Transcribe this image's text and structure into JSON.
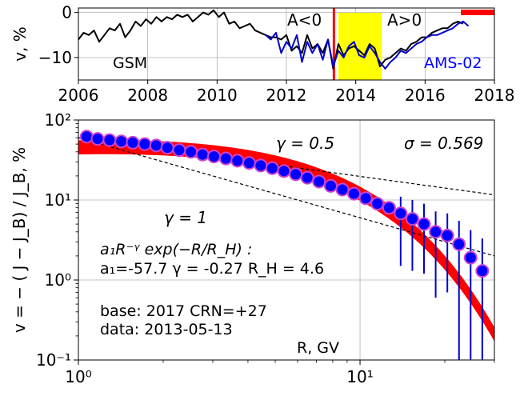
{
  "chart_data": [
    {
      "type": "line",
      "ylabel": "v, %",
      "xlim": [
        2006,
        2018
      ],
      "ylim": [
        -15,
        1
      ],
      "x_ticks": [
        "2006",
        "2008",
        "2010",
        "2012",
        "2014",
        "2016",
        "2018"
      ],
      "y_ticks": [
        "0",
        "−10"
      ],
      "grid": true,
      "annotations": [
        "A<0",
        "A>0",
        "GSM",
        "AMS-02"
      ],
      "red_line_x": 2013.37,
      "yellow_band": [
        2013.5,
        2014.75
      ],
      "series": [
        {
          "name": "GSM",
          "color": "#000000",
          "x": [
            2006.0,
            2006.15,
            2006.3,
            2006.45,
            2006.6,
            2006.75,
            2006.9,
            2007.05,
            2007.2,
            2007.35,
            2007.5,
            2007.65,
            2007.8,
            2007.95,
            2008.1,
            2008.25,
            2008.4,
            2008.55,
            2008.7,
            2008.85,
            2009.0,
            2009.15,
            2009.3,
            2009.45,
            2009.6,
            2009.75,
            2009.9,
            2010.05,
            2010.2,
            2010.35,
            2010.5,
            2010.65,
            2010.8,
            2010.95,
            2011.1,
            2011.25,
            2011.4,
            2011.55,
            2011.7,
            2011.85,
            2012.0,
            2012.15,
            2012.3,
            2012.45,
            2012.6,
            2012.75,
            2012.9,
            2013.05,
            2013.2,
            2013.35,
            2013.5,
            2013.65,
            2013.8,
            2013.95,
            2014.1,
            2014.25,
            2014.4,
            2014.55,
            2014.7,
            2014.85,
            2015.0,
            2015.15,
            2015.3,
            2015.45,
            2015.6,
            2015.75,
            2015.9,
            2016.05,
            2016.2,
            2016.35,
            2016.5,
            2016.65,
            2016.8,
            2016.95,
            2017.1
          ],
          "y": [
            -6.0,
            -4.5,
            -5.0,
            -4.0,
            -6.5,
            -5.0,
            -3.5,
            -4.0,
            -2.5,
            -5.5,
            -4.0,
            -2.0,
            -3.0,
            -1.5,
            -2.5,
            -1.0,
            -2.0,
            -1.0,
            -1.5,
            -0.5,
            -1.0,
            -0.5,
            -2.0,
            -1.0,
            0.0,
            -0.5,
            0.5,
            -1.0,
            0.0,
            -2.5,
            -2.0,
            -3.5,
            -3.0,
            -2.5,
            -4.0,
            -4.5,
            -5.0,
            -5.5,
            -5.5,
            -6.0,
            -5.0,
            -8.5,
            -7.5,
            -9.0,
            -5.0,
            -8.0,
            -7.0,
            -9.0,
            -6.0,
            -12.5,
            -7.0,
            -9.5,
            -8.0,
            -7.5,
            -8.5,
            -9.5,
            -7.0,
            -8.0,
            -12.0,
            -10.5,
            -10.0,
            -9.0,
            -8.0,
            -8.5,
            -7.0,
            -6.5,
            -5.5,
            -5.5,
            -4.5,
            -4.0,
            -3.5,
            -3.5,
            -2.5,
            -2.0,
            -2.5
          ]
        },
        {
          "name": "AMS-02",
          "color": "#0000cc",
          "x": [
            2011.4,
            2011.55,
            2011.7,
            2011.85,
            2012.0,
            2012.15,
            2012.3,
            2012.45,
            2012.6,
            2012.75,
            2012.9,
            2013.05,
            2013.2,
            2013.35,
            2013.5,
            2013.65,
            2013.8,
            2013.95,
            2014.1,
            2014.25,
            2014.4,
            2014.55,
            2014.7,
            2014.85,
            2015.0,
            2015.15,
            2015.3,
            2015.45,
            2015.6,
            2015.75,
            2015.9,
            2016.05,
            2016.2,
            2016.35,
            2016.5,
            2016.65,
            2016.8,
            2016.95,
            2017.1,
            2017.25
          ],
          "y": [
            -5.0,
            -6.0,
            -4.5,
            -9.0,
            -6.5,
            -8.0,
            -5.0,
            -11.0,
            -6.5,
            -9.0,
            -7.0,
            -10.5,
            -6.0,
            -12.0,
            -8.5,
            -10.0,
            -7.5,
            -6.5,
            -9.5,
            -10.0,
            -7.5,
            -9.0,
            -11.0,
            -12.5,
            -11.0,
            -10.0,
            -8.5,
            -9.0,
            -8.0,
            -7.0,
            -6.5,
            -5.5,
            -5.0,
            -5.0,
            -4.5,
            -4.0,
            -3.5,
            -2.5,
            -2.0,
            -3.0
          ]
        }
      ]
    },
    {
      "type": "scatter",
      "xlabel": "R, GV",
      "ylabel": "v = − ( J − J_B) / J_B, %",
      "xscale": "log",
      "yscale": "log",
      "xlim": [
        1.0,
        30.0
      ],
      "ylim": [
        0.1,
        100.0
      ],
      "x_ticks": [
        "10⁰",
        "10¹"
      ],
      "y_ticks": [
        "10⁻¹",
        "10⁰",
        "10¹",
        "10²"
      ],
      "grid": true,
      "annotations": {
        "gamma_half": "γ = 0.5",
        "gamma_one": "γ = 1",
        "sigma": "σ = 0.569",
        "formula": "a₁R⁻ᵞ exp(−R/R_H) :",
        "params": "a₁=-57.7  γ = -0.27  R_H =  4.6",
        "base": "base: 2017   CRN=+27",
        "data": "data: 2013-05-13"
      },
      "fit": {
        "a1": -57.7,
        "gamma": -0.27,
        "RH": 4.6
      },
      "band_half_width_pct": 20,
      "reference_lines": [
        {
          "gamma": 0.5,
          "x": [
            1.0,
            30.0
          ],
          "y": [
            60.0,
            11.6
          ]
        },
        {
          "gamma": 1.0,
          "x": [
            1.0,
            30.0
          ],
          "y": [
            60.0,
            2.0
          ]
        }
      ],
      "points": {
        "x": [
          1.07,
          1.17,
          1.29,
          1.42,
          1.56,
          1.72,
          1.89,
          2.07,
          2.28,
          2.51,
          2.76,
          3.03,
          3.34,
          3.67,
          4.04,
          4.44,
          4.88,
          5.37,
          5.91,
          6.5,
          7.15,
          7.87,
          8.66,
          9.52,
          10.48,
          11.52,
          12.68,
          13.94,
          15.34,
          16.87,
          18.56,
          20.42,
          22.46,
          24.7,
          27.17
        ],
        "y": [
          62.0,
          58.0,
          56.0,
          54.0,
          52.0,
          50.0,
          48.0,
          45.0,
          42.0,
          40.0,
          37.0,
          35.0,
          33.0,
          31.0,
          29.0,
          27.0,
          25.0,
          23.0,
          21.0,
          19.0,
          17.0,
          15.0,
          13.5,
          12.0,
          10.5,
          9.0,
          8.0,
          6.8,
          5.8,
          5.0,
          4.0,
          3.6,
          2.8,
          1.9,
          1.3
        ],
        "err_low": [
          null,
          null,
          null,
          null,
          null,
          null,
          null,
          null,
          null,
          null,
          null,
          null,
          null,
          null,
          null,
          null,
          null,
          null,
          null,
          null,
          null,
          null,
          null,
          null,
          null,
          null,
          null,
          1.5,
          1.3,
          1.2,
          0.6,
          0.7,
          0.1,
          0.1,
          0.1
        ],
        "err_high": [
          null,
          null,
          null,
          null,
          null,
          null,
          null,
          null,
          null,
          null,
          null,
          null,
          null,
          null,
          null,
          null,
          null,
          null,
          null,
          null,
          null,
          null,
          null,
          null,
          null,
          null,
          null,
          11.0,
          10.0,
          9.0,
          7.2,
          6.8,
          5.5,
          4.2,
          3.3
        ]
      }
    }
  ]
}
